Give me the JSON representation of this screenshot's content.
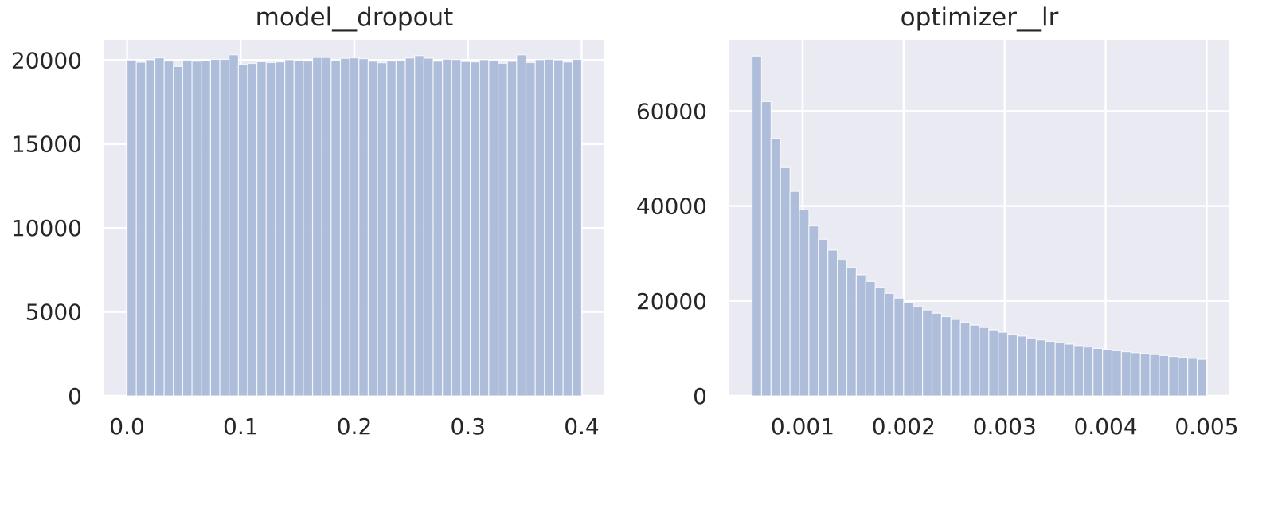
{
  "style": {
    "background": "#ffffff",
    "plot_background": "#eaeaf2",
    "grid_color": "#ffffff",
    "bar_color": "#a8b8d8",
    "text_color": "#262626"
  },
  "chart_data": [
    {
      "type": "bar",
      "subtype": "histogram",
      "title": "model__dropout",
      "xlabel": "",
      "ylabel": "",
      "grid": true,
      "xlim": [
        -0.02,
        0.42
      ],
      "ylim": [
        0,
        21200
      ],
      "xticks": [
        0.0,
        0.1,
        0.2,
        0.3,
        0.4
      ],
      "xtick_labels": [
        "0.0",
        "0.1",
        "0.2",
        "0.3",
        "0.4"
      ],
      "yticks": [
        0,
        5000,
        10000,
        15000,
        20000
      ],
      "ytick_labels": [
        "0",
        "5000",
        "10000",
        "15000",
        "20000"
      ],
      "bin_start": 0.0,
      "bin_end": 0.4,
      "values": [
        20000,
        19870,
        20020,
        20130,
        19940,
        19620,
        19990,
        19930,
        19950,
        20040,
        20040,
        20310,
        19740,
        19800,
        19900,
        19850,
        19890,
        20020,
        19990,
        19940,
        20150,
        20150,
        19990,
        20100,
        20130,
        20080,
        19930,
        19840,
        19940,
        19980,
        20120,
        20260,
        20110,
        19930,
        20050,
        20030,
        19910,
        19890,
        20020,
        19980,
        19810,
        19920,
        20310,
        19850,
        20020,
        20050,
        20010,
        19880,
        20040
      ]
    },
    {
      "type": "bar",
      "subtype": "histogram",
      "title": "optimizer__lr",
      "xlabel": "",
      "ylabel": "",
      "grid": true,
      "xlim": [
        0.000275,
        0.005225
      ],
      "ylim": [
        0,
        75000
      ],
      "xticks": [
        0.001,
        0.002,
        0.003,
        0.004,
        0.005
      ],
      "xtick_labels": [
        "0.001",
        "0.002",
        "0.003",
        "0.004",
        "0.005"
      ],
      "yticks": [
        0,
        20000,
        40000,
        60000
      ],
      "ytick_labels": [
        "0",
        "20000",
        "40000",
        "60000"
      ],
      "bin_start": 0.0005,
      "bin_end": 0.005,
      "values": [
        71600,
        62000,
        54200,
        48100,
        43100,
        39200,
        35800,
        33000,
        30700,
        28600,
        27000,
        25500,
        24100,
        22800,
        21600,
        20600,
        19700,
        18900,
        18100,
        17400,
        16700,
        16100,
        15500,
        14900,
        14400,
        13900,
        13400,
        13000,
        12600,
        12200,
        11800,
        11500,
        11200,
        10900,
        10600,
        10300,
        10000,
        9800,
        9500,
        9300,
        9100,
        8900,
        8700,
        8500,
        8300,
        8100,
        7900,
        7700
      ]
    }
  ]
}
